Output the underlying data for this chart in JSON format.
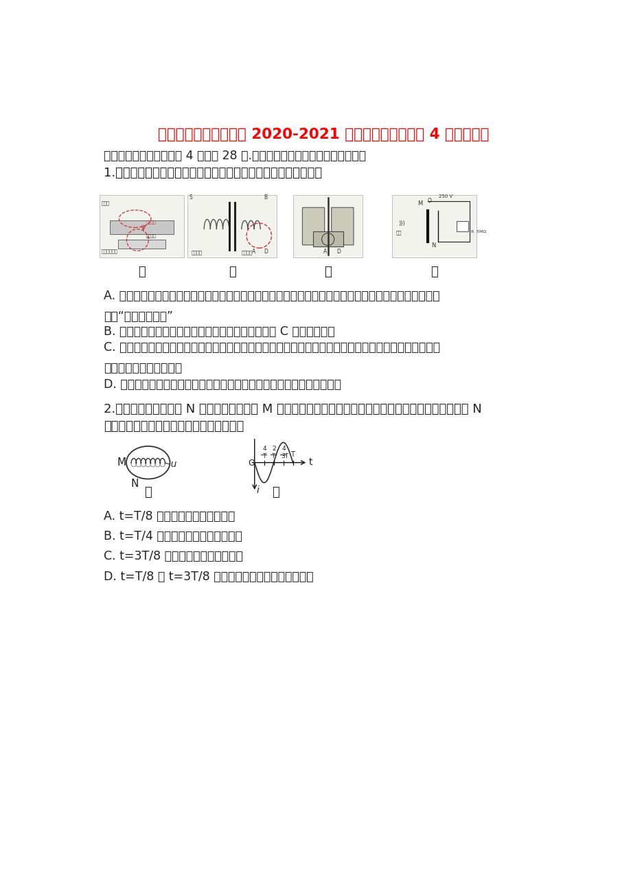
{
  "title": "四川省成都市树德中学 2020-2021 学年高二物理下学期 4 月月考试题",
  "title_color": "#FF0000",
  "title_fontsize": 15.5,
  "background_color": "#FFFFFF",
  "section1": "一、单项选择题（每小题 4 分，共 28 分.每小题只有一个选项符合题目要求）",
  "q1_stem": "1.电磁学的成就极大地推动了人类社会的进步。下列说法正确的是",
  "q1_labels": [
    "甲",
    "乙",
    "丙",
    "丁"
  ],
  "q1_opt_A": "A. 甲图是某品牌的无线充电手机利用电磁感应方式充电的原理图，无线充电时手机接收线圈部分的工作原\n理是“电流的磁效应”",
  "q1_opt_B": "B. 在乙图中，开关由闭合变为断开，则断开瞬间触头 C 马上离开触点",
  "q1_opt_C": "C. 在丙图中，钳形电流表是利用电磁感应原理制成的，它的优点是不需要切断导线，就可以方便地测出通\n过导线中交变电流的大小",
  "q1_opt_D": "D. 丁是电容式话筒的电路原理图，声波的振动会在电路中产生恒定的电流",
  "q2_stem_1": "2.一个长直密绕螺线管 N 放在一个金属圆环 M 的中心，圆环轴线与螺线管轴线重合，如图甲所示。螺线管 N",
  "q2_stem_2": "通有如图乙所示的电流，下列说法正确的是",
  "q2_labels": [
    "甲",
    "乙"
  ],
  "q2_opt_A": "A. t=T/8 时刻，圆环有收缩的趋势",
  "q2_opt_B": "B. t=T/4 时刻，圆环中感应电流最大",
  "q2_opt_C": "C. t=3T/8 时刻，圆环有收缩的趋势",
  "q2_opt_D": "D. t=T/8 和 t=3T/8 时刻，圆环内有相同的感应电流",
  "body_fontsize": 13,
  "option_fontsize": 13
}
